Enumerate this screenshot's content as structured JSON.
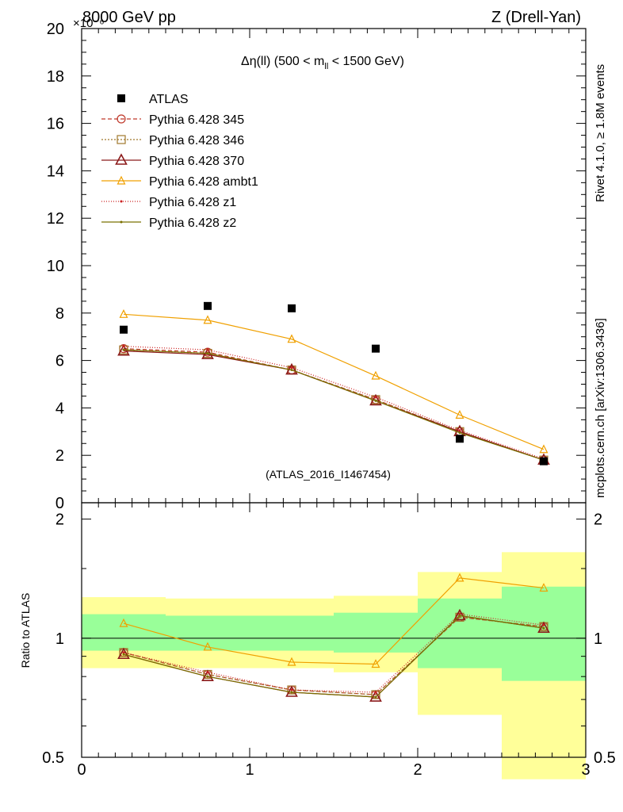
{
  "header": {
    "left": "8000 GeV pp",
    "right": "Z (Drell-Yan)",
    "exponent": "×10⁻⁶"
  },
  "side": {
    "rivet": "Rivet 4.1.0, ≥ 1.8M events",
    "mcplots": "mcplots.cern.ch [arXiv:1306.3436]"
  },
  "chart_data": {
    "type": "line",
    "title": "Δη(ll) (500 < m_ll < 1500 GeV)",
    "title_main": "Δη(ll) (500 < m",
    "title_sub": "ll",
    "title_end": " < 1500 GeV)",
    "watermark": "(ATLAS_2016_I1467454)",
    "xlabel": "",
    "ylabel_ratio": "Ratio to ATLAS",
    "xlim": [
      0,
      3
    ],
    "ylim": [
      0,
      20
    ],
    "ratio_ylim": [
      0.5,
      2.2
    ],
    "x_ticks": [
      "0",
      "1",
      "2",
      "3"
    ],
    "y_ticks": [
      "0",
      "2",
      "4",
      "6",
      "8",
      "10",
      "12",
      "14",
      "16",
      "18",
      "20"
    ],
    "ratio_ticks": [
      "0.5",
      "1",
      "2"
    ],
    "bins": [
      [
        0,
        0.5
      ],
      [
        0.5,
        1.0
      ],
      [
        1.0,
        1.5
      ],
      [
        1.5,
        2.0
      ],
      [
        2.0,
        2.5
      ],
      [
        2.5,
        3.0
      ]
    ],
    "x": [
      0.25,
      0.75,
      1.25,
      1.75,
      2.25,
      2.75
    ],
    "data": {
      "name": "ATLAS",
      "values": [
        7.3,
        8.3,
        8.2,
        6.5,
        2.7,
        1.75
      ],
      "band_inner": [
        [
          0.93,
          1.15
        ],
        [
          0.93,
          1.14
        ],
        [
          0.93,
          1.14
        ],
        [
          0.92,
          1.16
        ],
        [
          0.84,
          1.26
        ],
        [
          0.78,
          1.35
        ]
      ],
      "band_outer": [
        [
          0.84,
          1.27
        ],
        [
          0.84,
          1.26
        ],
        [
          0.84,
          1.26
        ],
        [
          0.82,
          1.28
        ],
        [
          0.64,
          1.47
        ],
        [
          0.44,
          1.65
        ]
      ]
    },
    "series": [
      {
        "name": "Pythia 6.428 345",
        "color": "#c0392b",
        "marker": "circle",
        "dash": "5,3",
        "values": [
          6.5,
          6.35,
          5.6,
          4.35,
          3.0,
          1.8
        ],
        "ratio": [
          0.92,
          0.81,
          0.74,
          0.72,
          1.13,
          1.07
        ]
      },
      {
        "name": "Pythia 6.428 346",
        "color": "#a0782c",
        "marker": "square",
        "dash": "2,2",
        "values": [
          6.45,
          6.3,
          5.6,
          4.35,
          3.0,
          1.8
        ],
        "ratio": [
          0.92,
          0.81,
          0.74,
          0.72,
          1.13,
          1.07
        ]
      },
      {
        "name": "Pythia 6.428 370",
        "color": "#8b1a1a",
        "marker": "triangle",
        "dash": "",
        "values": [
          6.4,
          6.25,
          5.6,
          4.3,
          3.0,
          1.8
        ],
        "ratio": [
          0.91,
          0.8,
          0.73,
          0.71,
          1.14,
          1.06
        ]
      },
      {
        "name": "Pythia 6.428 ambt1",
        "color": "#f0a000",
        "marker": "triangle-small",
        "dash": "",
        "values": [
          7.95,
          7.7,
          6.9,
          5.35,
          3.7,
          2.25
        ],
        "ratio": [
          1.09,
          0.95,
          0.87,
          0.86,
          1.42,
          1.34
        ]
      },
      {
        "name": "Pythia 6.428 z1",
        "color": "#cc2020",
        "marker": "dot",
        "dash": "1,2",
        "values": [
          6.6,
          6.45,
          5.7,
          4.45,
          3.05,
          1.85
        ],
        "ratio": [
          0.92,
          0.82,
          0.74,
          0.73,
          1.15,
          1.08
        ]
      },
      {
        "name": "Pythia 6.428 z2",
        "color": "#7a7000",
        "marker": "dot",
        "dash": "",
        "values": [
          6.45,
          6.3,
          5.6,
          4.3,
          2.95,
          1.8
        ],
        "ratio": [
          0.91,
          0.8,
          0.73,
          0.71,
          1.14,
          1.06
        ]
      }
    ]
  }
}
